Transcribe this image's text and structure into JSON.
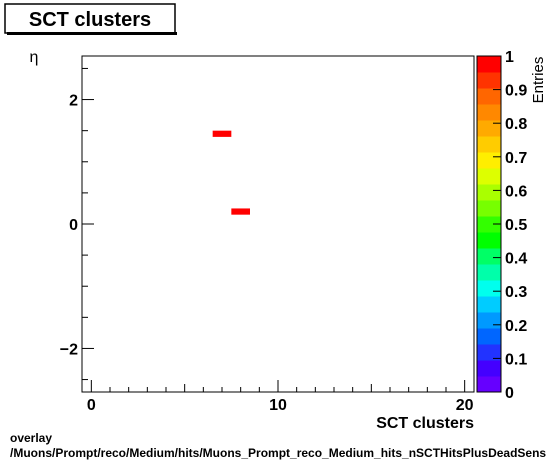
{
  "chart_data": {
    "type": "heatmap",
    "title": "SCT clusters",
    "xlabel": "SCT clusters",
    "ylabel": "η",
    "zlabel": "Entries",
    "xlim": [
      -0.5,
      20.5
    ],
    "ylim": [
      -2.7,
      2.7
    ],
    "zlim": [
      0,
      1
    ],
    "x_ticks": [
      0,
      10,
      20
    ],
    "y_ticks": [
      -2,
      0,
      2
    ],
    "y_tick_labels": [
      "−2",
      "0",
      "2"
    ],
    "z_ticks": [
      0,
      0.1,
      0.2,
      0.3,
      0.4,
      0.5,
      0.6,
      0.7,
      0.8,
      0.9,
      1
    ],
    "z_tick_labels": [
      "0",
      "0.1",
      "0.2",
      "0.3",
      "0.4",
      "0.5",
      "0.6",
      "0.7",
      "0.8",
      "0.9",
      "1"
    ],
    "bins": [
      {
        "x0": 6.5,
        "x1": 7.5,
        "y0": 1.4,
        "y1": 1.5,
        "value": 1
      },
      {
        "x0": 7.5,
        "x1": 8.5,
        "y0": 0.15,
        "y1": 0.25,
        "value": 1
      }
    ],
    "palette": [
      "#6600ff",
      "#4400ff",
      "#2233ff",
      "#0066ff",
      "#0099ff",
      "#00ccff",
      "#00ffee",
      "#00ffaa",
      "#00ff66",
      "#00ff00",
      "#33ff00",
      "#77ff00",
      "#aaff00",
      "#ddff00",
      "#ffee00",
      "#ffcc00",
      "#ffaa00",
      "#ff8800",
      "#ff6600",
      "#ff3300",
      "#ff0000"
    ]
  },
  "footer": {
    "line1": "overlay",
    "line2": "/Muons/Prompt/reco/Medium/hits/Muons_Prompt_reco_Medium_hits_nSCTHitsPlusDeadSensors_vs_eta"
  }
}
